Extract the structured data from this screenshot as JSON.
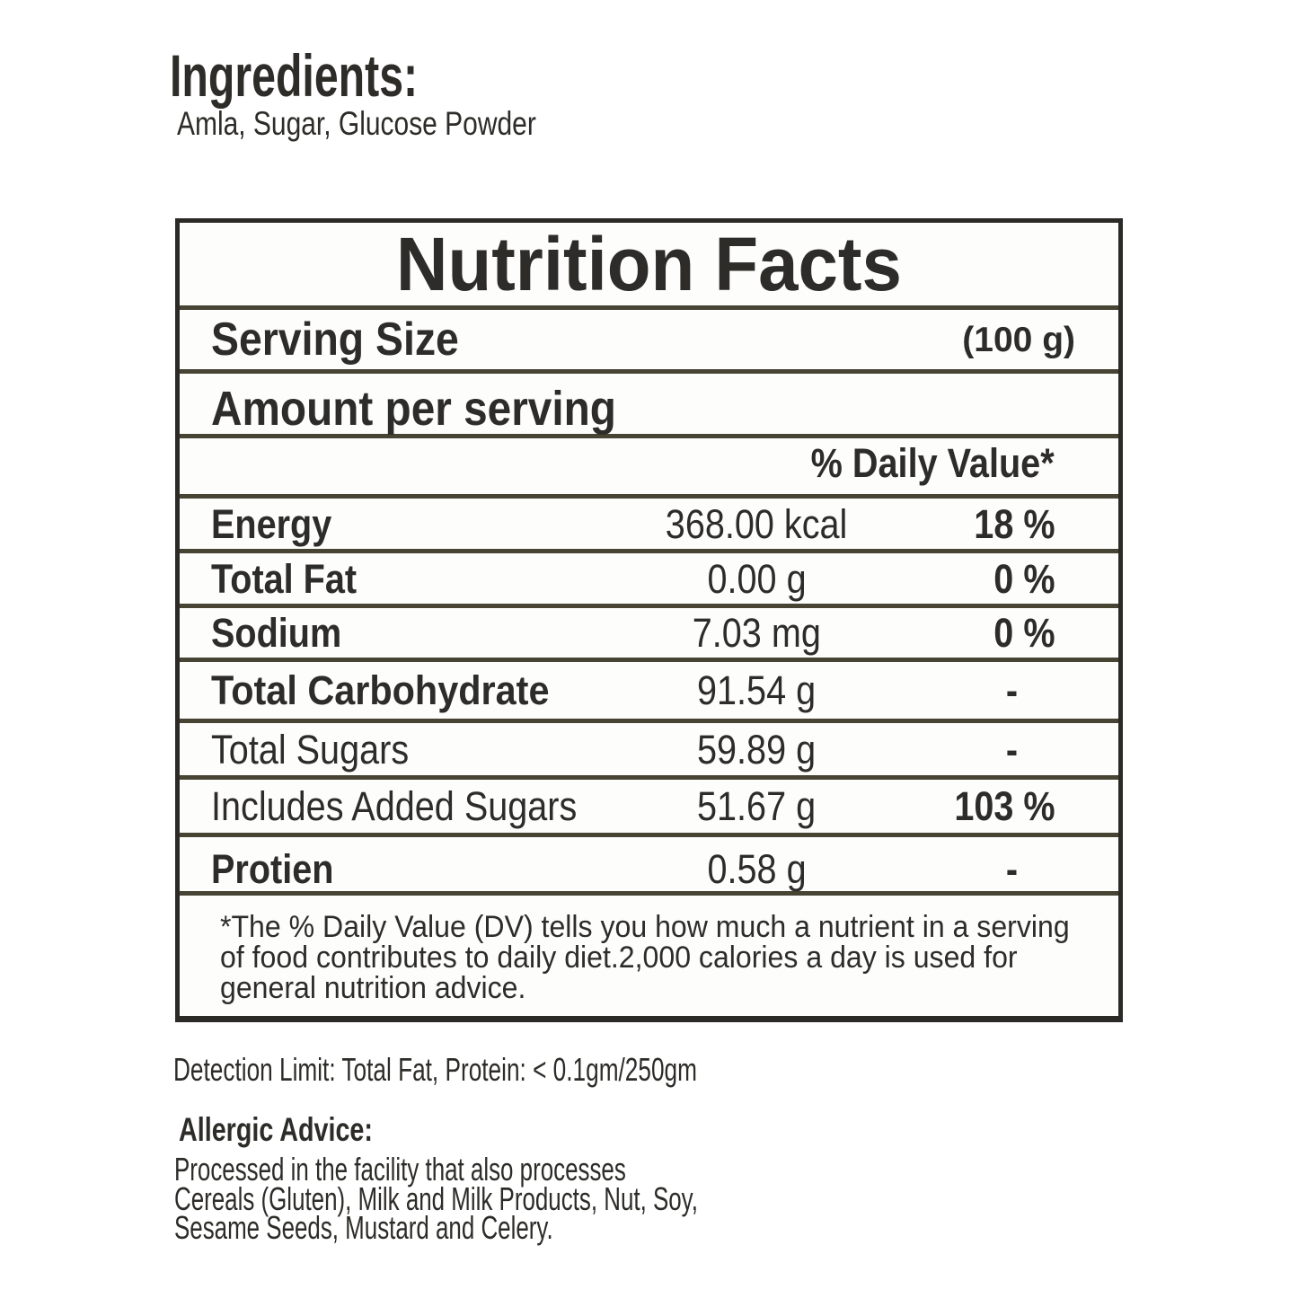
{
  "ingredients": {
    "title": "Ingredients:",
    "text": "Amla, Sugar, Glucose Powder"
  },
  "nutrition_facts": {
    "title": "Nutrition Facts",
    "serving_size": {
      "label": "Serving Size",
      "value": "(100 g)"
    },
    "amount_per_serving": "Amount per serving",
    "daily_value_header": "% Daily Value*",
    "rows": [
      {
        "label": "Energy",
        "amount": "368.00 kcal",
        "daily_value": "18 %"
      },
      {
        "label": "Total Fat",
        "amount": "0.00 g",
        "daily_value": "0 %"
      },
      {
        "label": "Sodium",
        "amount": "7.03 mg",
        "daily_value": "0 %"
      },
      {
        "label": "Total Carbohydrate",
        "amount": "91.54 g",
        "daily_value": "-"
      },
      {
        "label": "Total Sugars",
        "amount": "59.89 g",
        "daily_value": "-"
      },
      {
        "label": "Includes Added Sugars",
        "amount": "51.67 g",
        "daily_value": "103 %"
      },
      {
        "label": "Protien",
        "amount": "0.58 g",
        "daily_value": "-"
      }
    ],
    "footnote_lines": [
      "*The % Daily Value (DV) tells you how much a nutrient in a serving",
      "of food contributes to daily diet.2,000 calories a day is used for",
      "general nutrition advice."
    ]
  },
  "detection_limit": "Detection Limit: Total Fat, Protein: < 0.1gm/250gm",
  "allergic_advice": {
    "title": "Allergic Advice:",
    "lines": [
      "Processed in the facility that also processes",
      "Cereals (Gluten), Milk and Milk Products, Nut, Soy,",
      "Sesame Seeds, Mustard and Celery."
    ]
  },
  "colors": {
    "background": "#ffffff",
    "table_background": "#fdfdfc",
    "outer_border": "#2b2a26",
    "inner_rule": "#474434",
    "text": "#2d2c28"
  }
}
